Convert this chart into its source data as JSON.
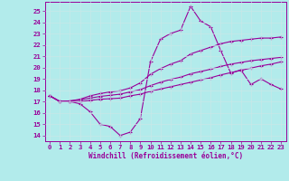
{
  "background_color": "#b2ebeb",
  "grid_color": "#c8e8e8",
  "line_color": "#990099",
  "marker": "+",
  "marker_size": 3,
  "marker_lw": 0.8,
  "line_width": 0.8,
  "xlabel": "Windchill (Refroidissement éolien,°C)",
  "xlim": [
    -0.5,
    23.5
  ],
  "ylim": [
    13.5,
    25.8
  ],
  "yticks": [
    14,
    15,
    16,
    17,
    18,
    19,
    20,
    21,
    22,
    23,
    24,
    25
  ],
  "xticks": [
    0,
    1,
    2,
    3,
    4,
    5,
    6,
    7,
    8,
    9,
    10,
    11,
    12,
    13,
    14,
    15,
    16,
    17,
    18,
    19,
    20,
    21,
    22,
    23
  ],
  "series": [
    [
      17.5,
      17.0,
      17.0,
      16.8,
      16.1,
      15.0,
      14.8,
      14.0,
      14.3,
      15.5,
      20.5,
      22.5,
      23.0,
      23.3,
      25.4,
      24.1,
      23.6,
      21.5,
      19.5,
      19.8,
      18.5,
      19.0,
      18.5,
      18.1
    ],
    [
      17.5,
      17.0,
      17.0,
      17.0,
      17.1,
      17.2,
      17.25,
      17.3,
      17.5,
      17.65,
      17.9,
      18.1,
      18.3,
      18.5,
      18.7,
      18.9,
      19.1,
      19.35,
      19.55,
      19.75,
      19.95,
      20.15,
      20.3,
      20.5
    ],
    [
      17.5,
      17.0,
      17.05,
      17.15,
      17.3,
      17.45,
      17.55,
      17.65,
      17.85,
      18.05,
      18.4,
      18.7,
      18.95,
      19.15,
      19.45,
      19.65,
      19.85,
      20.1,
      20.3,
      20.45,
      20.6,
      20.7,
      20.8,
      20.9
    ],
    [
      17.5,
      17.0,
      17.05,
      17.2,
      17.5,
      17.7,
      17.85,
      17.95,
      18.2,
      18.65,
      19.4,
      19.9,
      20.3,
      20.6,
      21.2,
      21.5,
      21.8,
      22.1,
      22.3,
      22.4,
      22.5,
      22.6,
      22.6,
      22.7
    ]
  ]
}
